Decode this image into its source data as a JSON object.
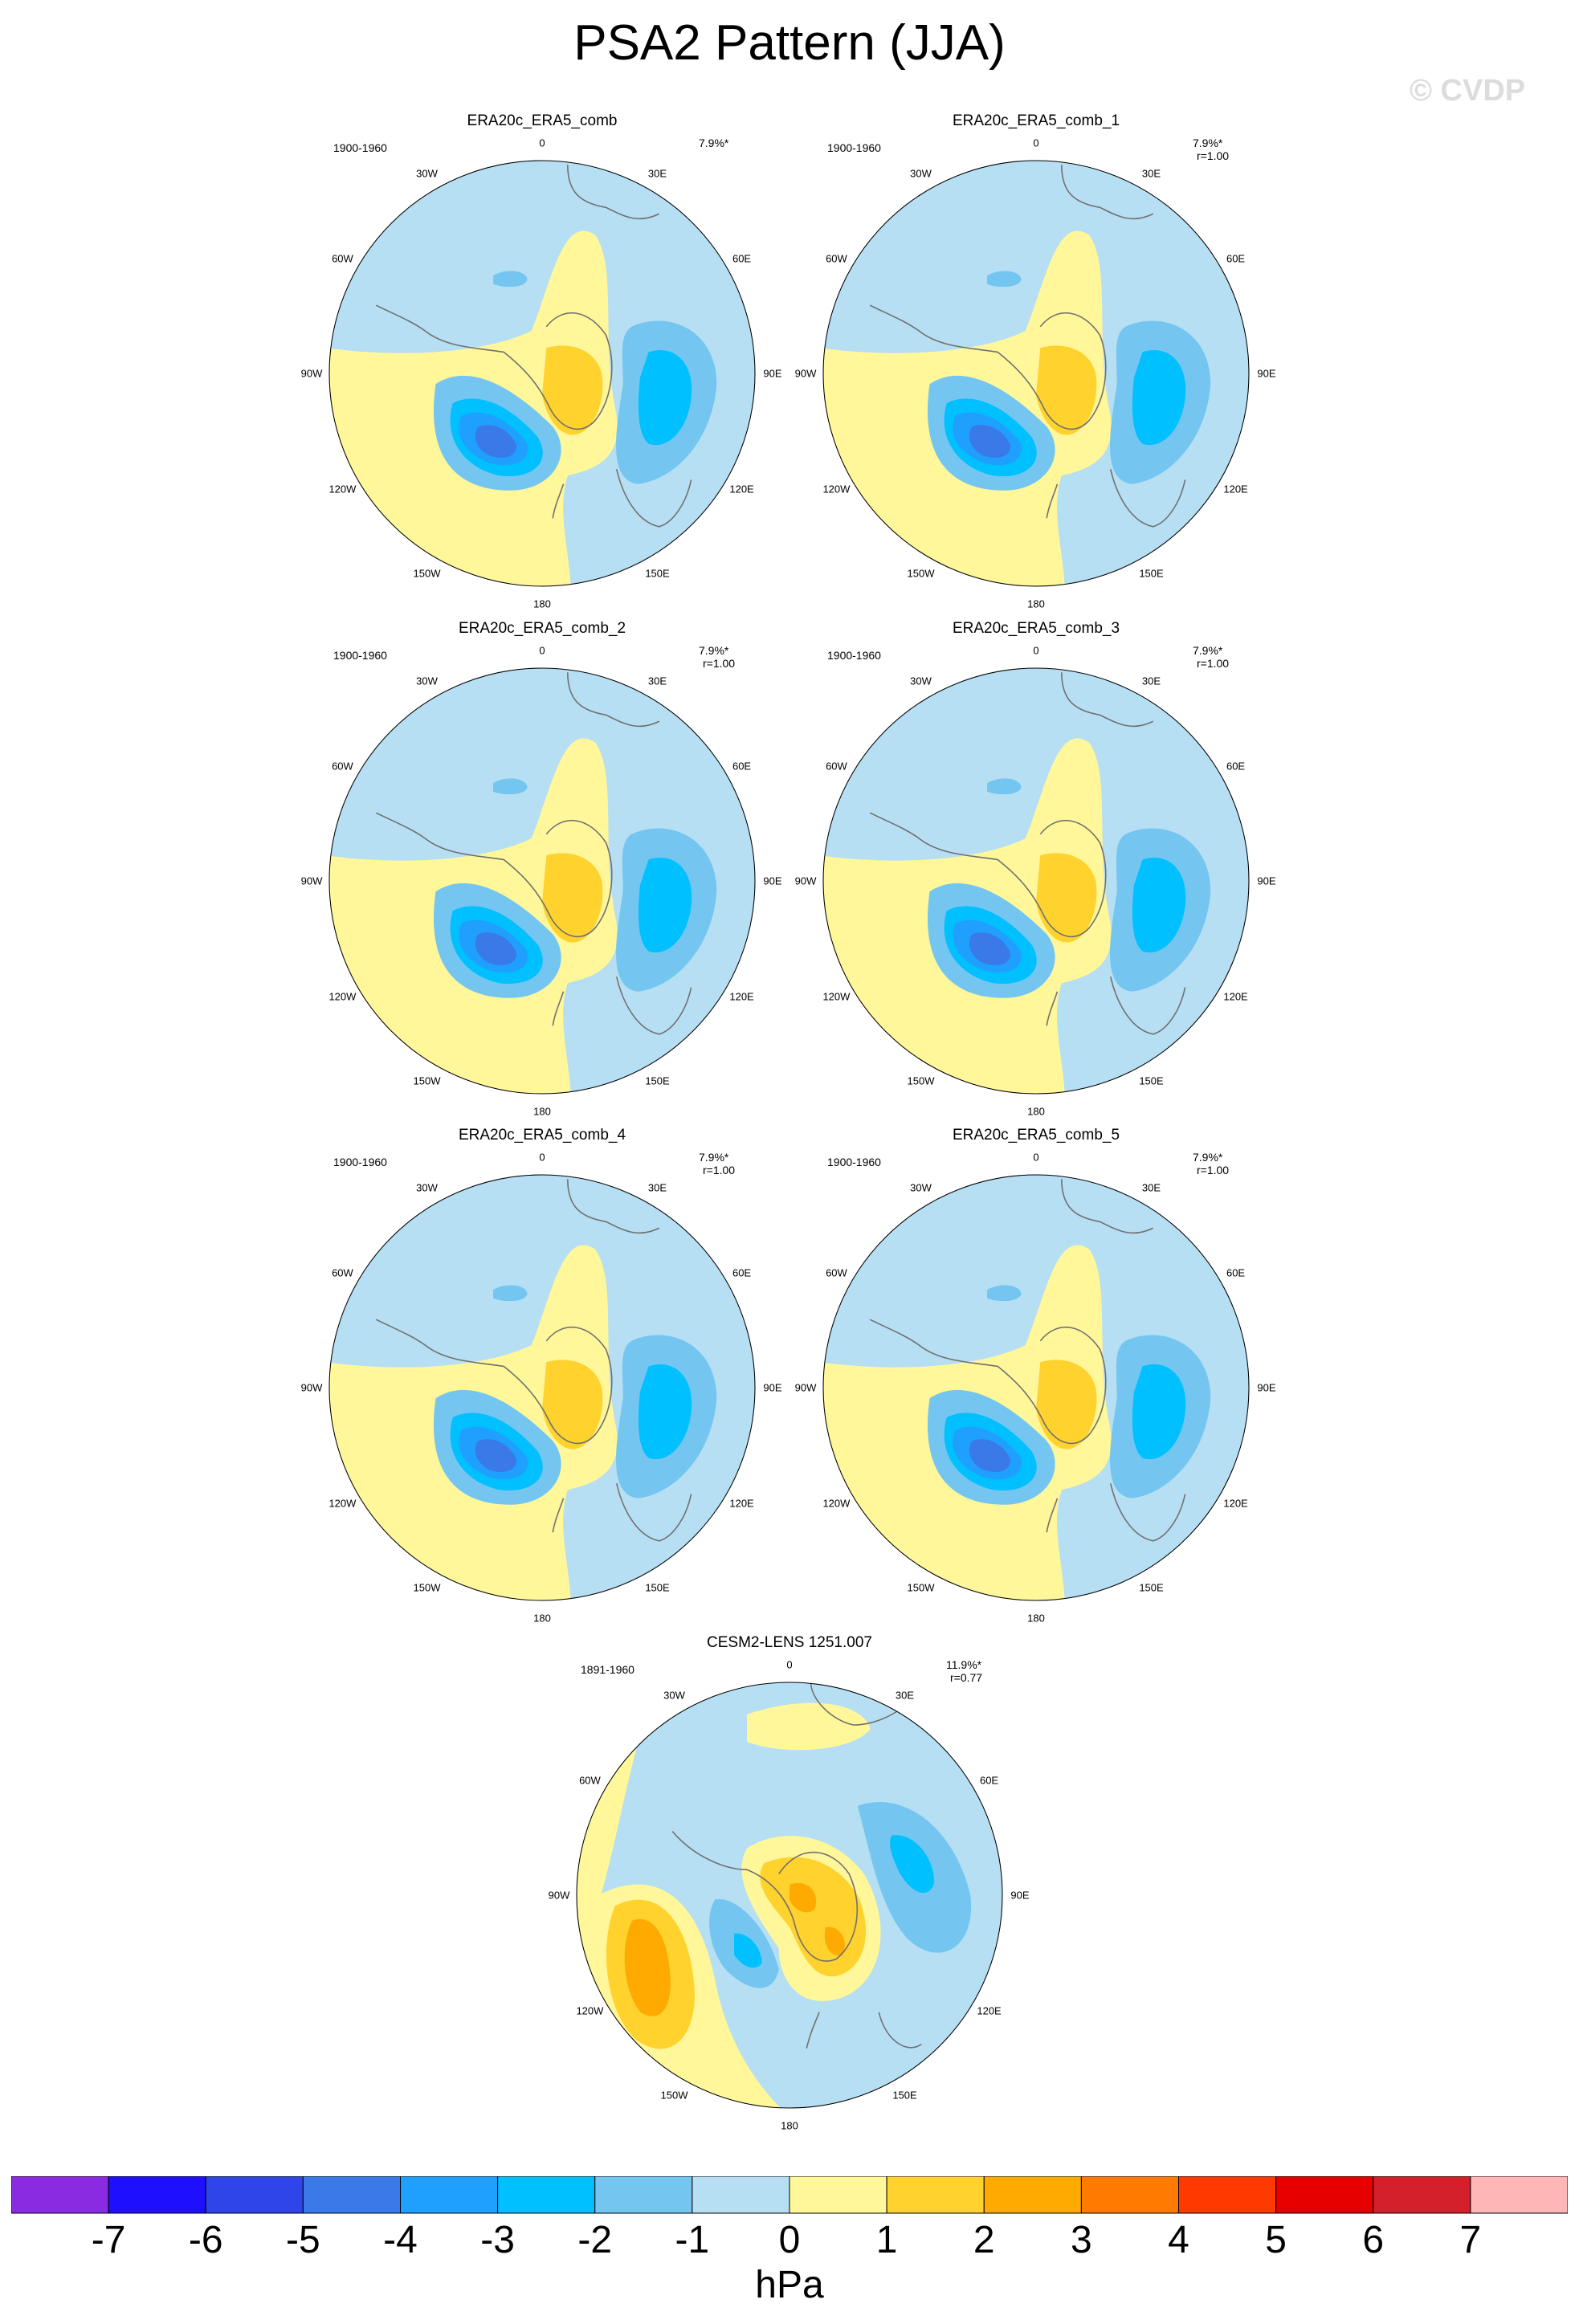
{
  "figure": {
    "title": "PSA2 Pattern (JJA)",
    "watermark": "© CVDP",
    "units": "hPa"
  },
  "colors": {
    "contour_levels": [
      -7,
      -6,
      -5,
      -4,
      -3,
      -2,
      -1,
      0,
      1,
      2,
      3,
      4,
      5,
      6,
      7
    ],
    "palette": [
      "#8a2be2",
      "#1e10ff",
      "#2f45e8",
      "#3a7ae8",
      "#1fa0ff",
      "#00c0ff",
      "#74c6f0",
      "#b6dff3",
      "#fff79a",
      "#ffd22e",
      "#ffaa00",
      "#ff7a00",
      "#ff3a00",
      "#e60000",
      "#d4202a",
      "#ffb6b6"
    ],
    "land_outline": "#707070"
  },
  "lon_labels": [
    "0",
    "30E",
    "60E",
    "90E",
    "120E",
    "150E",
    "180",
    "150W",
    "120W",
    "90W",
    "60W",
    "30W"
  ],
  "colorbar": {
    "tick_labels": [
      "-7",
      "-6",
      "-5",
      "-4",
      "-3",
      "-2",
      "-1",
      "0",
      "1",
      "2",
      "3",
      "4",
      "5",
      "6",
      "7"
    ]
  },
  "panels": [
    {
      "name": "ERA20c_ERA5_comb",
      "years": "1900-1960",
      "pct": "7.9%*",
      "corr": "",
      "pattern": "obs"
    },
    {
      "name": "ERA20c_ERA5_comb_1",
      "years": "1900-1960",
      "pct": "7.9%*",
      "corr": "r=1.00",
      "pattern": "obs"
    },
    {
      "name": "ERA20c_ERA5_comb_2",
      "years": "1900-1960",
      "pct": "7.9%*",
      "corr": "r=1.00",
      "pattern": "obs"
    },
    {
      "name": "ERA20c_ERA5_comb_3",
      "years": "1900-1960",
      "pct": "7.9%*",
      "corr": "r=1.00",
      "pattern": "obs"
    },
    {
      "name": "ERA20c_ERA5_comb_4",
      "years": "1900-1960",
      "pct": "7.9%*",
      "corr": "r=1.00",
      "pattern": "obs"
    },
    {
      "name": "ERA20c_ERA5_comb_5",
      "years": "1900-1960",
      "pct": "7.9%*",
      "corr": "r=1.00",
      "pattern": "obs"
    },
    {
      "name": "CESM2-LENS 1251.007",
      "years": "1891-1960",
      "pct": "11.9%*",
      "corr": "r=0.77",
      "pattern": "model"
    }
  ]
}
